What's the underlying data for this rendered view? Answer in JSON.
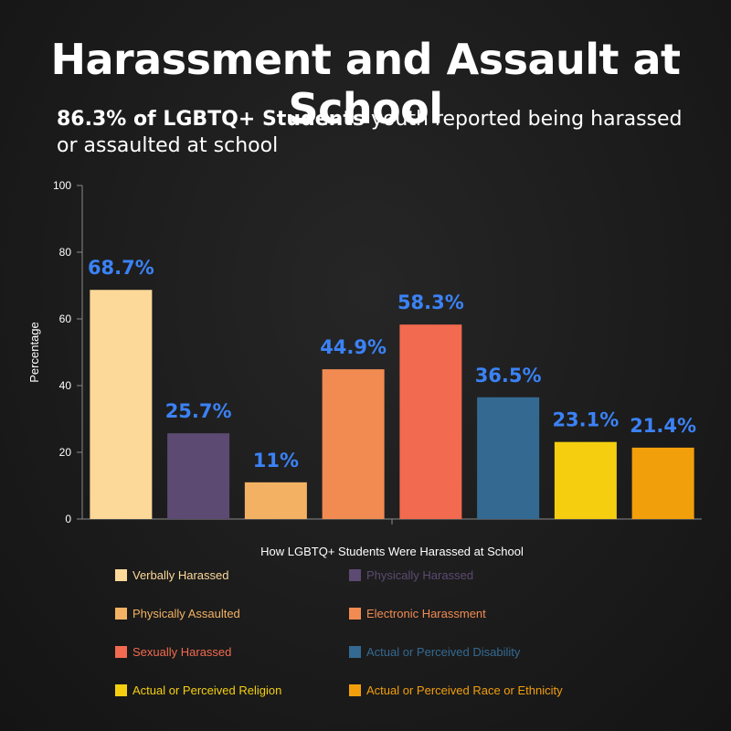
{
  "header": {
    "title": "Harassment and Assault at School",
    "subtitle_bold": "86.3% of LGBTQ+ Students",
    "subtitle_rest": " youth reported being harassed or assaulted at school"
  },
  "chart_data": {
    "type": "bar",
    "xlabel": "How LGBTQ+ Students Were Harassed at School",
    "ylabel": "Percentage",
    "ylim": [
      0,
      100
    ],
    "yticks": [
      0,
      20,
      40,
      60,
      80,
      100
    ],
    "grid": false,
    "legend_position": "bottom",
    "data_label_color": "#3b82f6",
    "categories": [
      "Verbally Harassed",
      "Physically Harassed",
      "Physically Assaulted",
      "Electronic Harassment",
      "Sexually Harassed",
      "Actual or Perceived Disability",
      "Actual or Perceived Religion",
      "Actual or Perceived Race or Ethnicity"
    ],
    "values": [
      68.7,
      25.7,
      11,
      44.9,
      58.3,
      36.5,
      23.1,
      21.4
    ],
    "data_labels": [
      "68.7%",
      "25.7%",
      "11%",
      "44.9%",
      "58.3%",
      "36.5%",
      "23.1%",
      "21.4%"
    ],
    "colors": [
      "#fcd998",
      "#5c4a72",
      "#f3b263",
      "#f18b52",
      "#f26a4f",
      "#346a92",
      "#f5cf0f",
      "#f29f0c"
    ]
  }
}
